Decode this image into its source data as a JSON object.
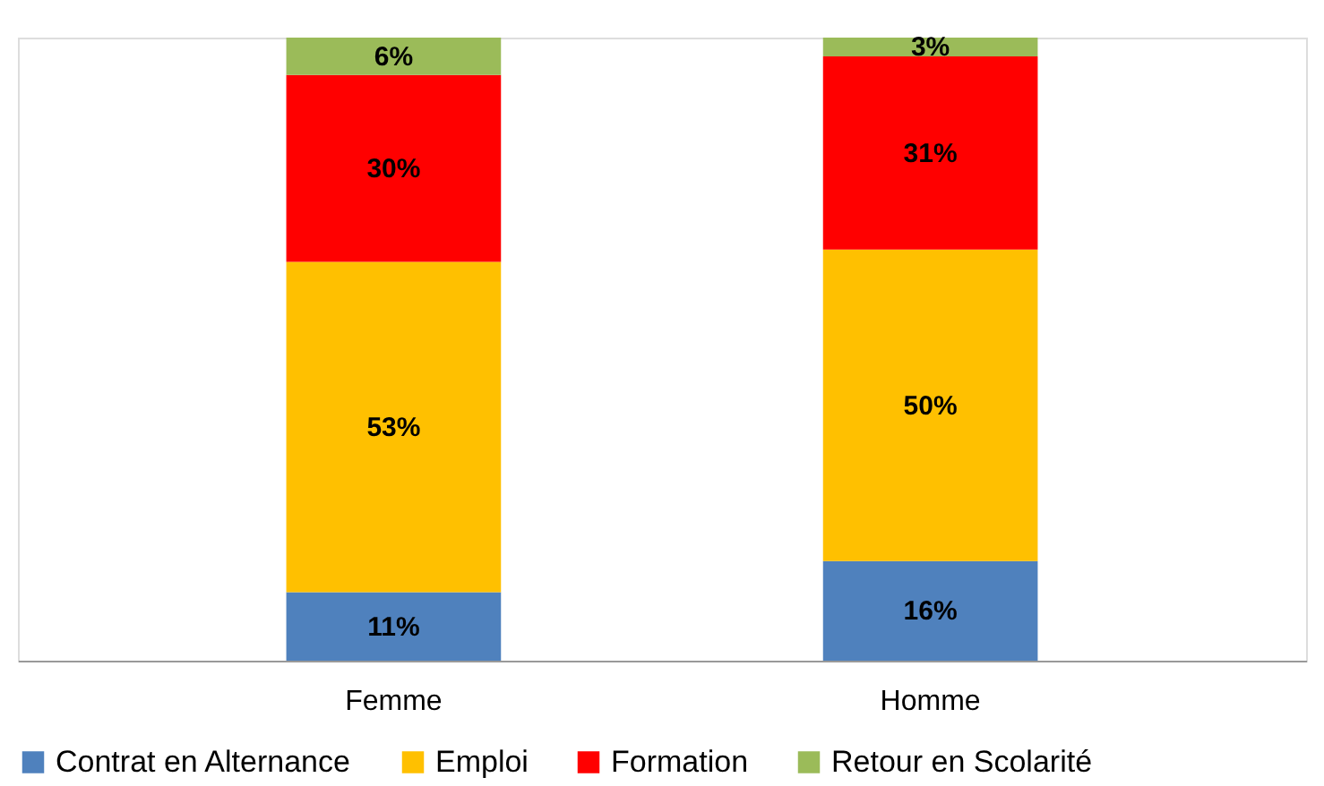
{
  "chart_data": {
    "type": "bar",
    "stacked": true,
    "legend": "bottom",
    "grid": false,
    "categories": [
      "Femme",
      "Homme"
    ],
    "series": [
      {
        "name": "Contrat en Alternance",
        "color": "#4f81bd",
        "values": [
          11,
          16
        ],
        "value_labels": [
          "11%",
          "16%"
        ]
      },
      {
        "name": "Emploi",
        "color": "#ffc000",
        "values": [
          53,
          50
        ],
        "value_labels": [
          "53%",
          "50%"
        ]
      },
      {
        "name": "Formation",
        "color": "#ff0000",
        "values": [
          30,
          31
        ],
        "value_labels": [
          "30%",
          "31%"
        ]
      },
      {
        "name": "Retour en Scolarité",
        "color": "#9bbb59",
        "values": [
          6,
          3
        ],
        "value_labels": [
          "6%",
          "3%"
        ]
      }
    ]
  }
}
